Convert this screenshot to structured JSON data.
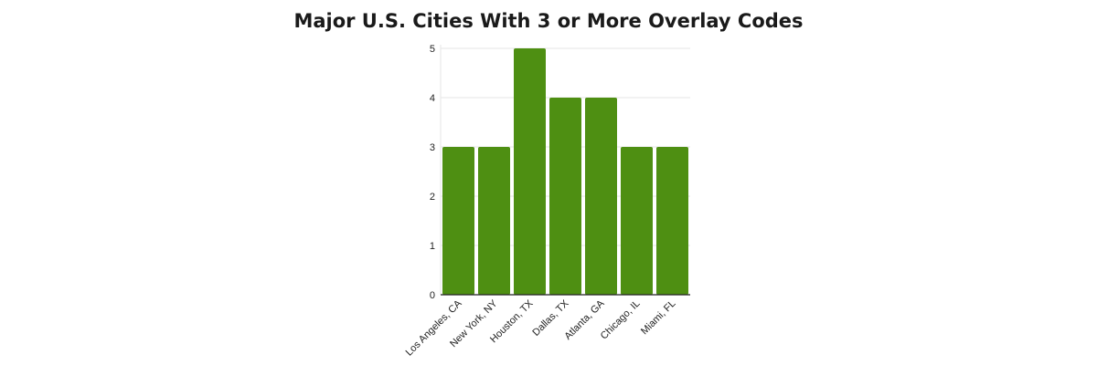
{
  "chart_data": {
    "type": "bar",
    "title": "Major U.S. Cities With 3 or More Overlay Codes",
    "xlabel": "",
    "ylabel": "",
    "categories": [
      "Los Angeles, CA",
      "New York, NY",
      "Houston, TX",
      "Dallas, TX",
      "Atlanta, GA",
      "Chicago, IL",
      "Miami, FL"
    ],
    "values": [
      3,
      3,
      5,
      4,
      4,
      3,
      3
    ],
    "ylim": [
      0,
      5
    ],
    "yticks": [
      "0",
      "1",
      "2",
      "3",
      "4",
      "5"
    ],
    "grid": true,
    "legend": "none",
    "colors": {
      "bar": "#4e8f12",
      "grid": "#e6e6e6",
      "axis": "#222222"
    }
  }
}
